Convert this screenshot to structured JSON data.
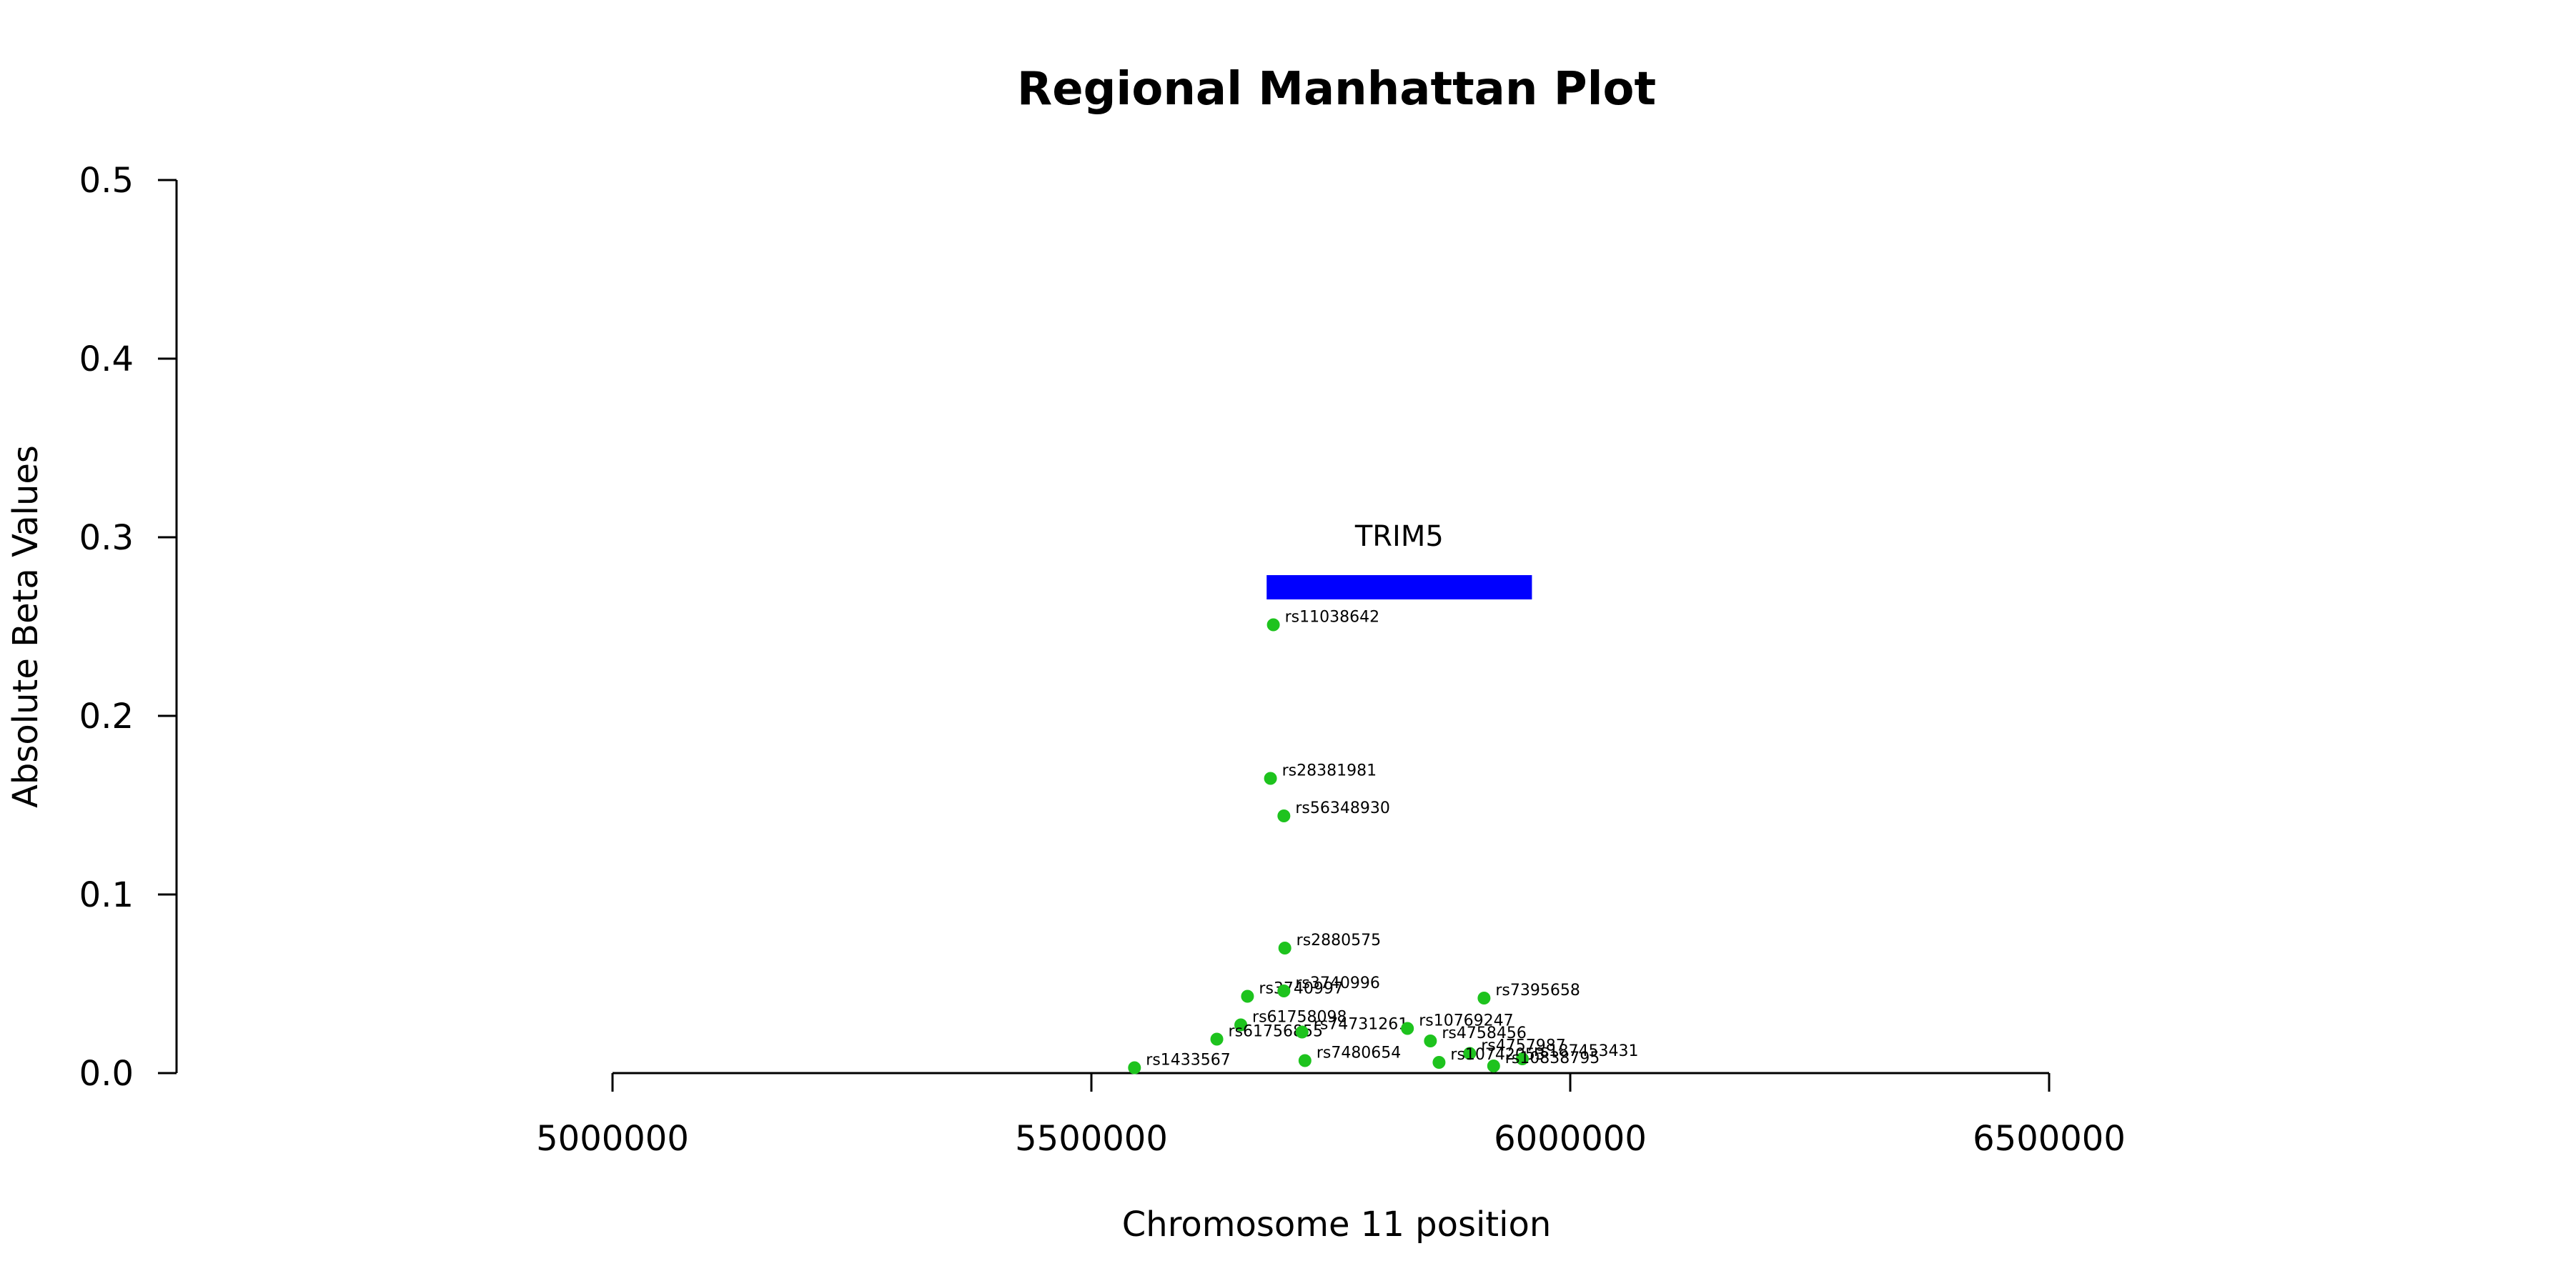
{
  "chart_data": {
    "type": "scatter",
    "title": "Regional Manhattan Plot",
    "xlabel": "Chromosome 11 position",
    "ylabel": "Absolute Beta Values",
    "xlim": [
      5000000,
      6500000
    ],
    "ylim": [
      0.0,
      0.5
    ],
    "x_ticks": [
      5000000,
      5500000,
      6000000,
      6500000
    ],
    "x_tick_labels": [
      "5000000",
      "5500000",
      "6000000",
      "6500000"
    ],
    "y_ticks": [
      0.0,
      0.1,
      0.2,
      0.3,
      0.4,
      0.5
    ],
    "y_tick_labels": [
      "0.0",
      "0.1",
      "0.2",
      "0.3",
      "0.4",
      "0.5"
    ],
    "grid": false,
    "point_color": "#1ec31e",
    "gene": {
      "name": "TRIM5",
      "start": 5683000,
      "end": 5960000,
      "y": 0.272,
      "color": "#0000ff"
    },
    "points": [
      {
        "snp": "rs11038642",
        "x": 5690000,
        "y": 0.251
      },
      {
        "snp": "rs28381981",
        "x": 5687000,
        "y": 0.165
      },
      {
        "snp": "rs56348930",
        "x": 5701000,
        "y": 0.144
      },
      {
        "snp": "rs2880575",
        "x": 5702000,
        "y": 0.07
      },
      {
        "snp": "rs3740997",
        "x": 5663000,
        "y": 0.043
      },
      {
        "snp": "rs3740996",
        "x": 5701000,
        "y": 0.046
      },
      {
        "snp": "rs7395658",
        "x": 5910000,
        "y": 0.042
      },
      {
        "snp": "rs61758098",
        "x": 5656000,
        "y": 0.027
      },
      {
        "snp": "rs61756855",
        "x": 5631000,
        "y": 0.019
      },
      {
        "snp": "rs74731261",
        "x": 5720000,
        "y": 0.023
      },
      {
        "snp": "rs10769247",
        "x": 5830000,
        "y": 0.025
      },
      {
        "snp": "rs4758456",
        "x": 5854000,
        "y": 0.018
      },
      {
        "snp": "rs4757987",
        "x": 5895000,
        "y": 0.011
      },
      {
        "snp": "rs10742053",
        "x": 5863000,
        "y": 0.006
      },
      {
        "snp": "rs187453431",
        "x": 5950000,
        "y": 0.008
      },
      {
        "snp": "rs10838795",
        "x": 5920000,
        "y": 0.004
      },
      {
        "snp": "rs7480654",
        "x": 5723000,
        "y": 0.007
      },
      {
        "snp": "rs1433567",
        "x": 5545000,
        "y": 0.003
      }
    ]
  }
}
